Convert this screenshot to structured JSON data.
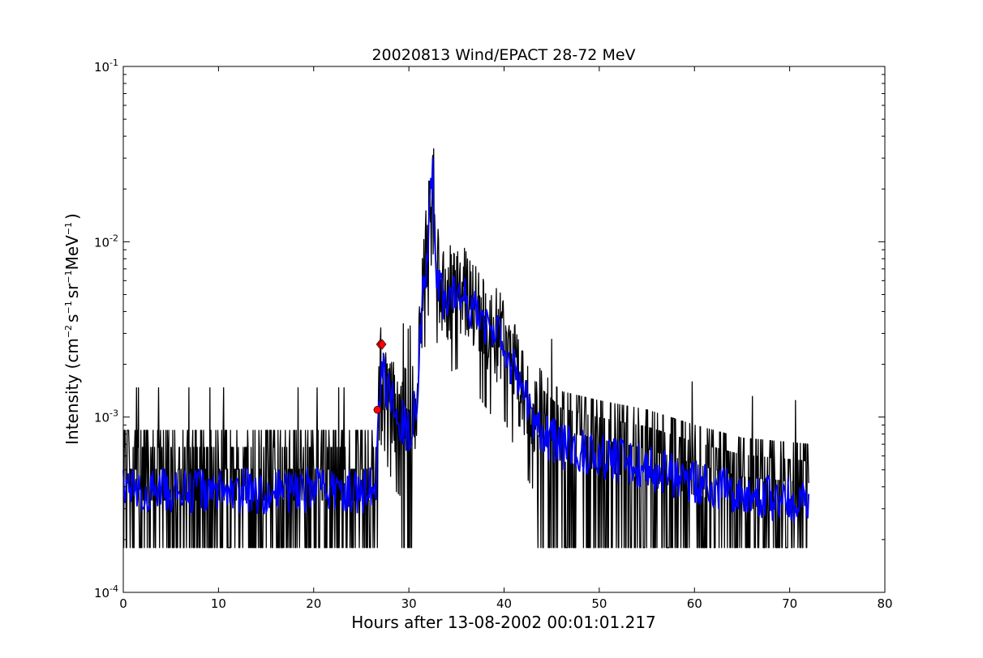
{
  "chart_data": {
    "type": "line",
    "title": "20020813 Wind/EPACT 28-72 MeV",
    "xlabel": "Hours after 13-08-2002 00:01:01.217",
    "ylabel": "Intensity (cm^-2 s^-1 sr^-1 MeV^-1 )",
    "ylabel_parts": {
      "prefix": "Intensity (cm",
      "e1": "−2",
      "s": "s",
      "e2": "−1",
      "sr": "sr",
      "e3": "−1",
      "mev": "MeV",
      "e4": "−1",
      "suffix": ")"
    },
    "xlim": [
      0,
      80
    ],
    "ylim": [
      0.0001,
      0.1
    ],
    "yscale": "log",
    "grid": false,
    "xticks": [
      0,
      10,
      20,
      30,
      40,
      50,
      60,
      70,
      80
    ],
    "xtick_labels": [
      "0",
      "10",
      "20",
      "30",
      "40",
      "50",
      "60",
      "70",
      "80"
    ],
    "yticks": [
      0.0001,
      0.001,
      0.01,
      0.1
    ],
    "ytick_labels": [
      {
        "base": "10",
        "exp": "-4"
      },
      {
        "base": "10",
        "exp": "-3"
      },
      {
        "base": "10",
        "exp": "-2"
      },
      {
        "base": "10",
        "exp": "-1"
      }
    ],
    "series": [
      {
        "color": "#000000",
        "style": "raw",
        "x_range": [
          0,
          72
        ],
        "low_level": 0.00018,
        "discrete_levels": [
          0.00018,
          0.00036,
          0.00054,
          0.00072,
          0.0009
        ],
        "envelope": [
          [
            0,
            0.00042
          ],
          [
            26.6,
            0.00042
          ],
          [
            26.8,
            0.0011
          ],
          [
            27.2,
            0.0024
          ],
          [
            27.6,
            0.0016
          ],
          [
            28.5,
            0.0011
          ],
          [
            30,
            0.0009
          ],
          [
            30.8,
            0.0012
          ],
          [
            31.5,
            0.006
          ],
          [
            32.0,
            0.01
          ],
          [
            32.5,
            0.029
          ],
          [
            32.9,
            0.008
          ],
          [
            33.5,
            0.005
          ],
          [
            35.5,
            0.0055
          ],
          [
            37,
            0.004
          ],
          [
            38.5,
            0.003
          ],
          [
            40,
            0.0028
          ],
          [
            42,
            0.0014
          ],
          [
            44,
            0.0009
          ],
          [
            46,
            0.0007
          ],
          [
            50,
            0.00062
          ],
          [
            55,
            0.00055
          ],
          [
            60,
            0.00045
          ],
          [
            65,
            0.00038
          ],
          [
            72,
            0.00035
          ]
        ]
      },
      {
        "color": "#0000ff",
        "style": "smoothed",
        "x_range": [
          0,
          72
        ],
        "envelope": [
          [
            0,
            0.00038
          ],
          [
            26.6,
            0.00038
          ],
          [
            26.8,
            0.0011
          ],
          [
            27.2,
            0.0022
          ],
          [
            27.6,
            0.0015
          ],
          [
            28.5,
            0.0011
          ],
          [
            30,
            0.0008
          ],
          [
            30.8,
            0.0012
          ],
          [
            31.5,
            0.005
          ],
          [
            32.0,
            0.009
          ],
          [
            32.5,
            0.027
          ],
          [
            32.9,
            0.007
          ],
          [
            33.5,
            0.0048
          ],
          [
            35.5,
            0.0052
          ],
          [
            37,
            0.0038
          ],
          [
            38.5,
            0.0031
          ],
          [
            40,
            0.0027
          ],
          [
            42,
            0.0013
          ],
          [
            44,
            0.0008
          ],
          [
            46,
            0.00068
          ],
          [
            50,
            0.0006
          ],
          [
            55,
            0.00052
          ],
          [
            60,
            0.00042
          ],
          [
            65,
            0.00036
          ],
          [
            72,
            0.00033
          ]
        ]
      }
    ],
    "markers": [
      {
        "x": 26.7,
        "y": 0.0011,
        "shape": "circle",
        "color": "#ff0000"
      },
      {
        "x": 27.0,
        "y": 0.0026,
        "shape": "diamond",
        "color": "#ff0000"
      },
      {
        "x": 27.2,
        "y": 0.0026,
        "shape": "diamond",
        "color": "#ff0000"
      }
    ]
  }
}
